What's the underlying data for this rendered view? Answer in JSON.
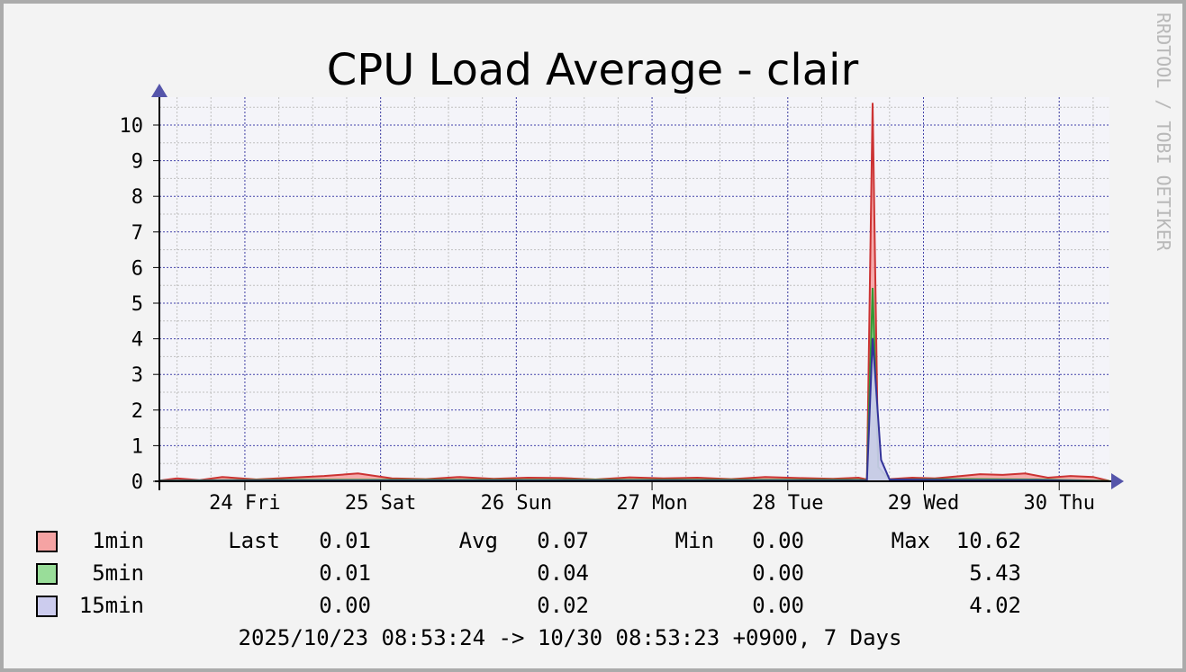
{
  "chart_data": {
    "type": "area",
    "title": "CPU Load Average - clair",
    "watermark": "RRDTOOL / TOBI OETIKER",
    "ylim": [
      0,
      10.62
    ],
    "y_ticks": [
      0,
      1,
      2,
      3,
      4,
      5,
      6,
      7,
      8,
      9,
      10
    ],
    "x_range": [
      "2025-10-23 08:53",
      "2025-10-30 08:53"
    ],
    "x_ticks": [
      {
        "label": "24 Fri",
        "time": "2025-10-24 00:00"
      },
      {
        "label": "25 Sat",
        "time": "2025-10-25 00:00"
      },
      {
        "label": "26 Sun",
        "time": "2025-10-26 00:00"
      },
      {
        "label": "27 Mon",
        "time": "2025-10-27 00:00"
      },
      {
        "label": "28 Tue",
        "time": "2025-10-28 00:00"
      },
      {
        "label": "29 Wed",
        "time": "2025-10-29 00:00"
      },
      {
        "label": "30 Thu",
        "time": "2025-10-30 00:00"
      }
    ],
    "grid": true,
    "series": [
      {
        "name": "1min",
        "color": "#cc3333",
        "fill": "#f5a3a3",
        "points": [
          [
            "2025-10-23 08:53",
            0.02
          ],
          [
            "2025-10-23 12:00",
            0.08
          ],
          [
            "2025-10-23 16:00",
            0.03
          ],
          [
            "2025-10-23 20:00",
            0.12
          ],
          [
            "2025-10-24 02:00",
            0.05
          ],
          [
            "2025-10-24 08:00",
            0.1
          ],
          [
            "2025-10-24 14:00",
            0.15
          ],
          [
            "2025-10-24 20:00",
            0.22
          ],
          [
            "2025-10-25 02:00",
            0.08
          ],
          [
            "2025-10-25 08:00",
            0.06
          ],
          [
            "2025-10-25 14:00",
            0.12
          ],
          [
            "2025-10-25 20:00",
            0.07
          ],
          [
            "2025-10-26 02:00",
            0.1
          ],
          [
            "2025-10-26 08:00",
            0.09
          ],
          [
            "2025-10-26 14:00",
            0.05
          ],
          [
            "2025-10-26 20:00",
            0.11
          ],
          [
            "2025-10-27 02:00",
            0.08
          ],
          [
            "2025-10-27 08:00",
            0.1
          ],
          [
            "2025-10-27 14:00",
            0.06
          ],
          [
            "2025-10-27 20:00",
            0.12
          ],
          [
            "2025-10-28 02:00",
            0.09
          ],
          [
            "2025-10-28 08:00",
            0.07
          ],
          [
            "2025-10-28 12:30",
            0.1
          ],
          [
            "2025-10-28 14:00",
            0.05
          ],
          [
            "2025-10-28 15:00",
            10.62
          ],
          [
            "2025-10-28 16:00",
            0.3
          ],
          [
            "2025-10-28 18:00",
            0.06
          ],
          [
            "2025-10-28 22:00",
            0.1
          ],
          [
            "2025-10-29 02:00",
            0.08
          ],
          [
            "2025-10-29 06:00",
            0.14
          ],
          [
            "2025-10-29 10:00",
            0.2
          ],
          [
            "2025-10-29 14:00",
            0.18
          ],
          [
            "2025-10-29 18:00",
            0.22
          ],
          [
            "2025-10-29 22:00",
            0.1
          ],
          [
            "2025-10-30 02:00",
            0.15
          ],
          [
            "2025-10-30 06:00",
            0.12
          ],
          [
            "2025-10-30 08:53",
            0.01
          ]
        ]
      },
      {
        "name": "5min",
        "color": "#339933",
        "fill": "#99dd99",
        "points": [
          [
            "2025-10-23 08:53",
            0.02
          ],
          [
            "2025-10-24 08:00",
            0.04
          ],
          [
            "2025-10-25 08:00",
            0.04
          ],
          [
            "2025-10-26 08:00",
            0.04
          ],
          [
            "2025-10-27 08:00",
            0.04
          ],
          [
            "2025-10-28 12:30",
            0.04
          ],
          [
            "2025-10-28 14:00",
            0.03
          ],
          [
            "2025-10-28 15:00",
            5.43
          ],
          [
            "2025-10-28 16:00",
            0.4
          ],
          [
            "2025-10-28 18:00",
            0.05
          ],
          [
            "2025-10-29 08:00",
            0.06
          ],
          [
            "2025-10-29 20:00",
            0.05
          ],
          [
            "2025-10-30 08:53",
            0.01
          ]
        ]
      },
      {
        "name": "15min",
        "color": "#333399",
        "fill": "#ccccee",
        "points": [
          [
            "2025-10-23 08:53",
            0.01
          ],
          [
            "2025-10-24 08:00",
            0.02
          ],
          [
            "2025-10-25 08:00",
            0.02
          ],
          [
            "2025-10-26 08:00",
            0.02
          ],
          [
            "2025-10-27 08:00",
            0.02
          ],
          [
            "2025-10-28 12:30",
            0.02
          ],
          [
            "2025-10-28 14:00",
            0.02
          ],
          [
            "2025-10-28 15:00",
            4.02
          ],
          [
            "2025-10-28 16:30",
            0.6
          ],
          [
            "2025-10-28 18:00",
            0.05
          ],
          [
            "2025-10-29 08:00",
            0.03
          ],
          [
            "2025-10-29 20:00",
            0.03
          ],
          [
            "2025-10-30 08:53",
            0.0
          ]
        ]
      }
    ],
    "legend": {
      "labels": {
        "last": "Last",
        "avg": "Avg",
        "min": "Min",
        "max": "Max"
      },
      "rows": [
        {
          "name": "1min",
          "last": "0.01",
          "avg": "0.07",
          "min": "0.00",
          "max": "10.62"
        },
        {
          "name": "5min",
          "last": "0.01",
          "avg": "0.04",
          "min": "0.00",
          "max": "5.43"
        },
        {
          "name": "15min",
          "last": "0.00",
          "avg": "0.02",
          "min": "0.00",
          "max": "4.02"
        }
      ]
    },
    "footer": "2025/10/23 08:53:24 -> 10/30 08:53:23 +0900, 7 Days"
  }
}
